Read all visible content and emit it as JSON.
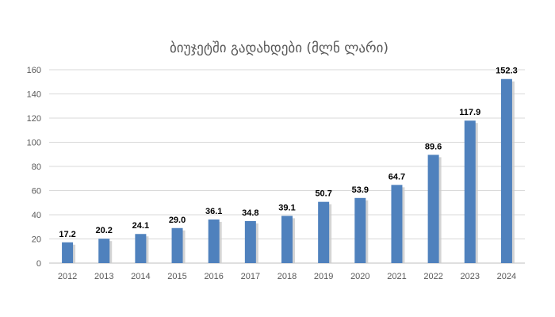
{
  "chart_data": {
    "type": "bar",
    "title": "ბიუჯეტში გადახდები (მლნ ლარი)",
    "xlabel": "",
    "ylabel": "",
    "categories": [
      "2012",
      "2013",
      "2014",
      "2015",
      "2016",
      "2017",
      "2018",
      "2019",
      "2020",
      "2021",
      "2022",
      "2023",
      "2024"
    ],
    "values": [
      17.2,
      20.2,
      24.1,
      29.0,
      36.1,
      34.8,
      39.1,
      50.7,
      53.9,
      64.7,
      89.6,
      117.9,
      152.3
    ],
    "data_labels": [
      "17.2",
      "20.2",
      "24.1",
      "29.0",
      "36.1",
      "34.8",
      "39.1",
      "50.7",
      "53.9",
      "64.7",
      "89.6",
      "117.9",
      "152.3"
    ],
    "ylim": [
      0,
      160
    ],
    "yticks": [
      0,
      20,
      40,
      60,
      80,
      100,
      120,
      140,
      160
    ],
    "grid": true,
    "legend": "none",
    "colors": {
      "bar": "#4f81bd",
      "bar_shadow": "#c9c9c9",
      "grid": "#d9d9d9",
      "text": "#595959"
    }
  }
}
